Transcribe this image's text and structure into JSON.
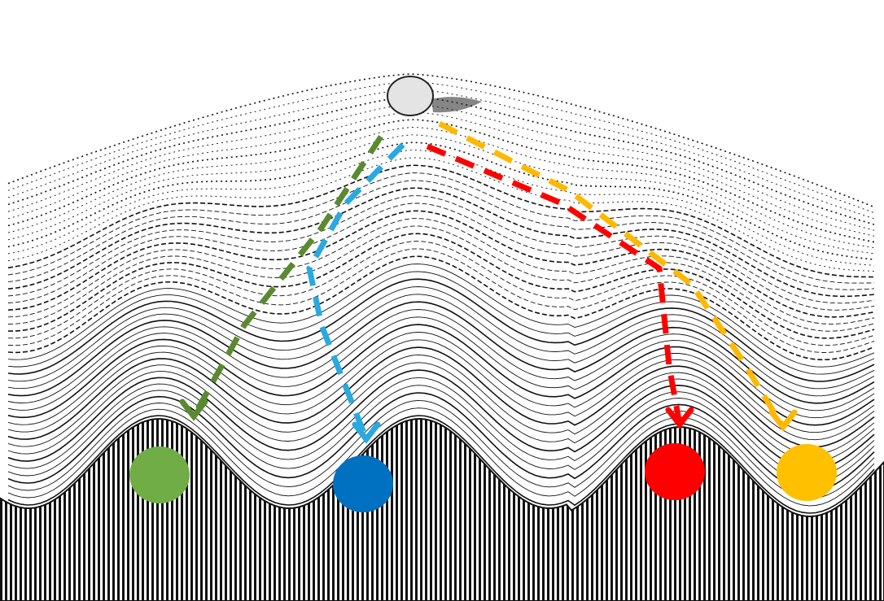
{
  "ball": {
    "color": "#e4e4e4"
  },
  "paths": [
    {
      "id": "green",
      "color": "#5a8a2f"
    },
    {
      "id": "blue",
      "color": "#29a9e0"
    },
    {
      "id": "red",
      "color": "#ff0000"
    },
    {
      "id": "orange",
      "color": "#ffb800"
    }
  ],
  "valleys": [
    {
      "id": "green",
      "color": "#70ad47"
    },
    {
      "id": "blue",
      "color": "#0070c0"
    },
    {
      "id": "red",
      "color": "#ff0000"
    },
    {
      "id": "orange",
      "color": "#ffc000"
    }
  ]
}
